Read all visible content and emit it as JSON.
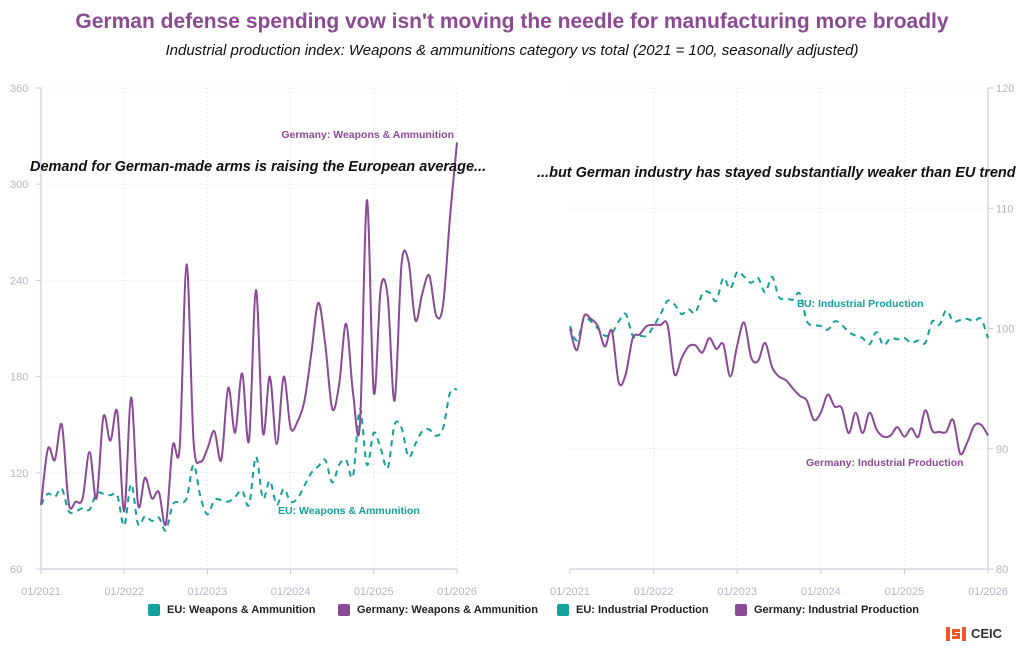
{
  "title": "German defense spending vow isn't moving the needle for manufacturing more broadly",
  "subtitle": "Industrial production index: Weapons & ammunitions category vs total (2021 = 100, seasonally adjusted)",
  "colors": {
    "title": "#8b4a92",
    "eu": "#14a09b",
    "germany": "#8a4a96"
  },
  "logo": "CEIC",
  "chart_data": [
    {
      "type": "line",
      "annotation": "Demand for German-made arms is raising the European average...",
      "x_start": "01/2021",
      "frequency": "monthly",
      "x_ticks": [
        "01/2021",
        "01/2022",
        "01/2023",
        "01/2024",
        "01/2025",
        "01/2026"
      ],
      "y_ticks": [
        60,
        120,
        180,
        240,
        300,
        360
      ],
      "ylim": [
        60,
        360
      ],
      "y_axis": "left",
      "grid": true,
      "series": [
        {
          "name": "EU: Weapons & Ammunition",
          "style": "dashed",
          "color": "#14a09b",
          "values": [
            100,
            107,
            105,
            110,
            96,
            96,
            98,
            97,
            107,
            107,
            106,
            106,
            87,
            113,
            88,
            93,
            90,
            92,
            84,
            100,
            102,
            104,
            125,
            105,
            94,
            103,
            103,
            102,
            105,
            109,
            100,
            130,
            104,
            115,
            100,
            110,
            102,
            104,
            112,
            120,
            124,
            128,
            114,
            125,
            128,
            118,
            160,
            125,
            145,
            135,
            123,
            150,
            148,
            130,
            138,
            146,
            147,
            143,
            148,
            170,
            172
          ]
        },
        {
          "name": "Germany: Weapons & Ammunition",
          "style": "solid",
          "color": "#8a4a96",
          "values": [
            100,
            135,
            128,
            150,
            101,
            102,
            104,
            133,
            104,
            155,
            140,
            158,
            96,
            167,
            100,
            117,
            104,
            108,
            88,
            137,
            136,
            250,
            140,
            127,
            135,
            146,
            128,
            173,
            145,
            182,
            140,
            234,
            145,
            180,
            138,
            180,
            148,
            152,
            165,
            195,
            226,
            200,
            160,
            175,
            213,
            170,
            150,
            290,
            170,
            235,
            230,
            165,
            250,
            252,
            215,
            232,
            243,
            218,
            225,
            280,
            326
          ]
        }
      ]
    },
    {
      "type": "line",
      "annotation": "...but German industry has stayed substantially weaker than EU trend",
      "x_start": "01/2021",
      "frequency": "monthly",
      "x_ticks": [
        "01/2021",
        "01/2022",
        "01/2023",
        "01/2024",
        "01/2025",
        "01/2026"
      ],
      "y_ticks": [
        80,
        90,
        100,
        110,
        120
      ],
      "ylim": [
        80,
        120
      ],
      "y_axis": "right",
      "grid": true,
      "series": [
        {
          "name": "EU: Industrial Production",
          "style": "dashed",
          "color": "#14a09b",
          "values": [
            100.2,
            99,
            100.8,
            100.6,
            100,
            99.4,
            99.6,
            100.6,
            101.2,
            99.4,
            99.4,
            99.4,
            100.2,
            101.2,
            102.3,
            102,
            101.2,
            101.6,
            101.3,
            102.9,
            103,
            102.3,
            104.2,
            103.3,
            104.7,
            104.3,
            103.8,
            104.2,
            103,
            104.3,
            102.6,
            102.5,
            102.4,
            102.9,
            100.6,
            100.3,
            100.2,
            99.9,
            100.6,
            100.3,
            99.7,
            99.4,
            99.2,
            98.7,
            99.7,
            98.6,
            99.2,
            99.1,
            99.2,
            98.8,
            99,
            98.8,
            100.6,
            100.3,
            101.5,
            100.6,
            100.7,
            100.8,
            100.6,
            100.8,
            99.2
          ]
        },
        {
          "name": "Germany: Industrial Production",
          "style": "solid",
          "color": "#8a4a96",
          "values": [
            100,
            98.2,
            101,
            100.8,
            100.2,
            98.5,
            99.8,
            95.5,
            96.2,
            99.2,
            99.5,
            100.2,
            100.3,
            100.3,
            100.3,
            96.2,
            97.5,
            98.5,
            98.6,
            98,
            99.2,
            98.3,
            98.7,
            96,
            98.6,
            100.5,
            97.6,
            97.3,
            98.8,
            96.8,
            96,
            95.7,
            95,
            94.4,
            94,
            92.4,
            93,
            94.5,
            93.5,
            93.4,
            91.3,
            93,
            91.3,
            93,
            91.6,
            91,
            91.1,
            91.8,
            91,
            91.7,
            91,
            93.2,
            91.5,
            91.4,
            91.4,
            92.4,
            89.6,
            90.5,
            91.9,
            92,
            91.1
          ]
        }
      ]
    }
  ],
  "labels": {
    "left_germany": "Germany: Weapons & Ammunition",
    "left_eu": "EU: Weapons & Ammunition",
    "right_eu": "EU: Industrial Production",
    "right_germany": "Germany: Industrial Production"
  },
  "legend": [
    {
      "label": "EU: Weapons & Ammunition",
      "color": "#14a09b"
    },
    {
      "label": "Germany: Weapons & Ammunition",
      "color": "#8a4a96"
    },
    {
      "label": "EU: Industrial Production",
      "color": "#14a09b"
    },
    {
      "label": "Germany: Industrial Production",
      "color": "#8a4a96"
    }
  ]
}
